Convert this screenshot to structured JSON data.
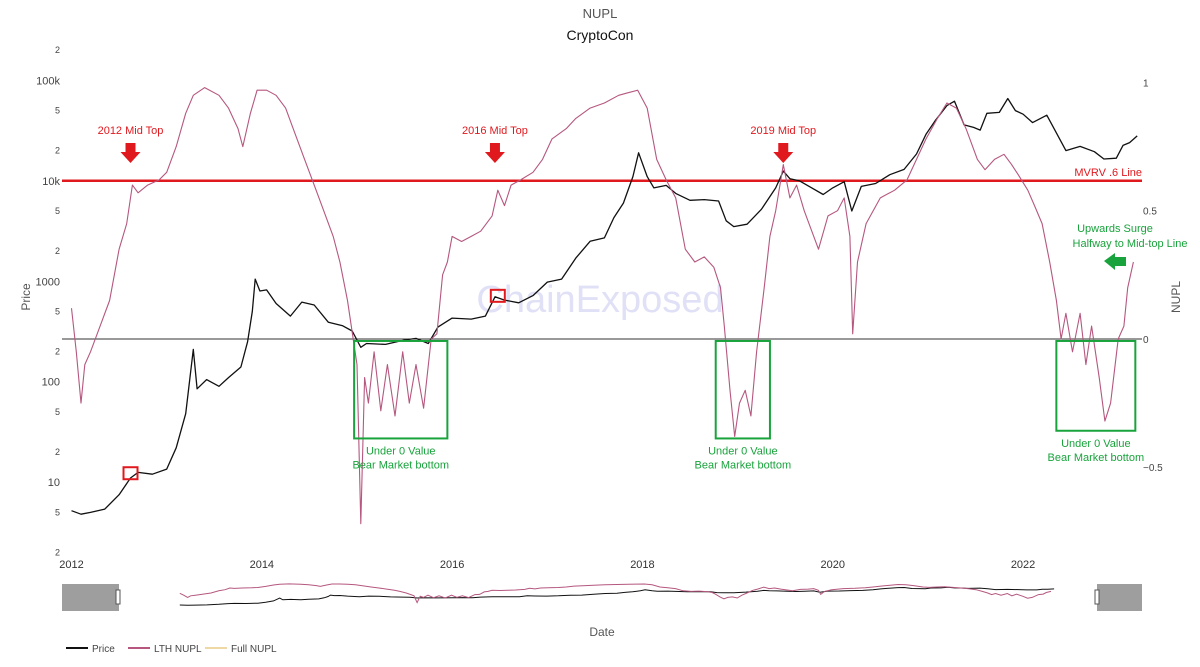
{
  "chart_data": {
    "type": "line",
    "title": "NUPL",
    "subtitle": "CryptoCon",
    "xlabel": "Date",
    "ylabel_left": "Price",
    "ylabel_right": "NUPL",
    "watermark": "ChainExposed",
    "x_ticks": [
      "2012",
      "2014",
      "2016",
      "2018",
      "2020",
      "2022"
    ],
    "x_range": [
      2011.9,
      2023.25
    ],
    "y_left": {
      "scale": "log",
      "range": [
        1.8,
        230000
      ],
      "major_ticks": [
        {
          "value": 10,
          "label": "10"
        },
        {
          "value": 100,
          "label": "100"
        },
        {
          "value": 1000,
          "label": "1000"
        },
        {
          "value": 10000,
          "label": "10k"
        },
        {
          "value": 100000,
          "label": "100k"
        }
      ],
      "minor_ticks": [
        {
          "value": 2,
          "label": "2"
        },
        {
          "value": 5,
          "label": "5"
        },
        {
          "value": 20,
          "label": "2"
        },
        {
          "value": 50,
          "label": "5"
        },
        {
          "value": 200,
          "label": "2"
        },
        {
          "value": 500,
          "label": "5"
        },
        {
          "value": 2000,
          "label": "2"
        },
        {
          "value": 5000,
          "label": "5"
        },
        {
          "value": 20000,
          "label": "2"
        },
        {
          "value": 50000,
          "label": "5"
        },
        {
          "value": 200000,
          "label": "2"
        }
      ]
    },
    "y_right": {
      "range": [
        -0.85,
        1.15
      ],
      "ticks": [
        {
          "value": 1,
          "label": "1"
        },
        {
          "value": 0.5,
          "label": "0.5"
        },
        {
          "value": 0,
          "label": "0"
        },
        {
          "value": -0.5,
          "label": "−0.5"
        }
      ]
    },
    "series": [
      {
        "name": "Price",
        "axis": "left",
        "color": "#111111",
        "points": [
          [
            2012.0,
            5.2
          ],
          [
            2012.1,
            4.8
          ],
          [
            2012.2,
            5.0
          ],
          [
            2012.35,
            5.4
          ],
          [
            2012.5,
            7.5
          ],
          [
            2012.62,
            11
          ],
          [
            2012.7,
            12.5
          ],
          [
            2012.85,
            12
          ],
          [
            2013.0,
            13.5
          ],
          [
            2013.1,
            22
          ],
          [
            2013.2,
            48
          ],
          [
            2013.28,
            210
          ],
          [
            2013.32,
            85
          ],
          [
            2013.42,
            105
          ],
          [
            2013.55,
            90
          ],
          [
            2013.65,
            110
          ],
          [
            2013.78,
            140
          ],
          [
            2013.85,
            250
          ],
          [
            2013.9,
            500
          ],
          [
            2013.93,
            1050
          ],
          [
            2013.98,
            800
          ],
          [
            2014.05,
            820
          ],
          [
            2014.15,
            600
          ],
          [
            2014.3,
            450
          ],
          [
            2014.42,
            620
          ],
          [
            2014.55,
            580
          ],
          [
            2014.7,
            390
          ],
          [
            2014.85,
            360
          ],
          [
            2014.95,
            320
          ],
          [
            2015.04,
            220
          ],
          [
            2015.1,
            240
          ],
          [
            2015.3,
            235
          ],
          [
            2015.5,
            260
          ],
          [
            2015.62,
            270
          ],
          [
            2015.75,
            240
          ],
          [
            2015.85,
            350
          ],
          [
            2016.0,
            430
          ],
          [
            2016.2,
            420
          ],
          [
            2016.35,
            450
          ],
          [
            2016.45,
            700
          ],
          [
            2016.55,
            650
          ],
          [
            2016.7,
            610
          ],
          [
            2016.85,
            720
          ],
          [
            2017.0,
            980
          ],
          [
            2017.15,
            1050
          ],
          [
            2017.3,
            1700
          ],
          [
            2017.45,
            2500
          ],
          [
            2017.6,
            2700
          ],
          [
            2017.7,
            4300
          ],
          [
            2017.8,
            6000
          ],
          [
            2017.9,
            11000
          ],
          [
            2017.96,
            19000
          ],
          [
            2018.05,
            11000
          ],
          [
            2018.12,
            8500
          ],
          [
            2018.25,
            9000
          ],
          [
            2018.35,
            7500
          ],
          [
            2018.5,
            6400
          ],
          [
            2018.65,
            6500
          ],
          [
            2018.8,
            6300
          ],
          [
            2018.88,
            4000
          ],
          [
            2018.96,
            3500
          ],
          [
            2019.1,
            3700
          ],
          [
            2019.25,
            5200
          ],
          [
            2019.4,
            8500
          ],
          [
            2019.48,
            12500
          ],
          [
            2019.55,
            10500
          ],
          [
            2019.65,
            10000
          ],
          [
            2019.78,
            8500
          ],
          [
            2019.9,
            7300
          ],
          [
            2020.0,
            8500
          ],
          [
            2020.12,
            9800
          ],
          [
            2020.2,
            5000
          ],
          [
            2020.3,
            8800
          ],
          [
            2020.45,
            9400
          ],
          [
            2020.6,
            11500
          ],
          [
            2020.75,
            13000
          ],
          [
            2020.88,
            18500
          ],
          [
            2020.98,
            29000
          ],
          [
            2021.08,
            40000
          ],
          [
            2021.2,
            56000
          ],
          [
            2021.28,
            62000
          ],
          [
            2021.38,
            36000
          ],
          [
            2021.48,
            34000
          ],
          [
            2021.55,
            32000
          ],
          [
            2021.62,
            47000
          ],
          [
            2021.75,
            48000
          ],
          [
            2021.84,
            66000
          ],
          [
            2021.92,
            50000
          ],
          [
            2022.0,
            46000
          ],
          [
            2022.1,
            38000
          ],
          [
            2022.25,
            45000
          ],
          [
            2022.35,
            30000
          ],
          [
            2022.45,
            20000
          ],
          [
            2022.6,
            22000
          ],
          [
            2022.75,
            19500
          ],
          [
            2022.85,
            16500
          ],
          [
            2022.98,
            16800
          ],
          [
            2023.05,
            22500
          ],
          [
            2023.12,
            24000
          ],
          [
            2023.2,
            28000
          ]
        ]
      },
      {
        "name": "LTH NUPL",
        "axis": "right",
        "color": "#b5577f",
        "points": [
          [
            2012.0,
            0.12
          ],
          [
            2012.05,
            -0.05
          ],
          [
            2012.1,
            -0.25
          ],
          [
            2012.14,
            -0.1
          ],
          [
            2012.2,
            -0.05
          ],
          [
            2012.3,
            0.05
          ],
          [
            2012.4,
            0.15
          ],
          [
            2012.5,
            0.35
          ],
          [
            2012.58,
            0.45
          ],
          [
            2012.64,
            0.6
          ],
          [
            2012.7,
            0.57
          ],
          [
            2012.8,
            0.6
          ],
          [
            2012.92,
            0.62
          ],
          [
            2013.0,
            0.65
          ],
          [
            2013.1,
            0.75
          ],
          [
            2013.2,
            0.88
          ],
          [
            2013.28,
            0.95
          ],
          [
            2013.4,
            0.98
          ],
          [
            2013.55,
            0.95
          ],
          [
            2013.65,
            0.9
          ],
          [
            2013.75,
            0.82
          ],
          [
            2013.8,
            0.75
          ],
          [
            2013.88,
            0.88
          ],
          [
            2013.95,
            0.97
          ],
          [
            2014.05,
            0.97
          ],
          [
            2014.15,
            0.95
          ],
          [
            2014.25,
            0.9
          ],
          [
            2014.35,
            0.8
          ],
          [
            2014.45,
            0.7
          ],
          [
            2014.55,
            0.6
          ],
          [
            2014.65,
            0.5
          ],
          [
            2014.75,
            0.4
          ],
          [
            2014.82,
            0.3
          ],
          [
            2014.9,
            0.15
          ],
          [
            2014.96,
            0.0
          ],
          [
            2015.0,
            -0.1
          ],
          [
            2015.04,
            -0.72
          ],
          [
            2015.08,
            -0.15
          ],
          [
            2015.12,
            -0.25
          ],
          [
            2015.18,
            -0.05
          ],
          [
            2015.25,
            -0.28
          ],
          [
            2015.32,
            -0.1
          ],
          [
            2015.4,
            -0.3
          ],
          [
            2015.48,
            -0.05
          ],
          [
            2015.55,
            -0.25
          ],
          [
            2015.62,
            -0.1
          ],
          [
            2015.7,
            -0.27
          ],
          [
            2015.78,
            0.0
          ],
          [
            2015.84,
            0.02
          ],
          [
            2015.9,
            0.25
          ],
          [
            2015.95,
            0.3
          ],
          [
            2016.0,
            0.4
          ],
          [
            2016.1,
            0.38
          ],
          [
            2016.2,
            0.4
          ],
          [
            2016.3,
            0.42
          ],
          [
            2016.42,
            0.48
          ],
          [
            2016.48,
            0.58
          ],
          [
            2016.55,
            0.52
          ],
          [
            2016.62,
            0.6
          ],
          [
            2016.72,
            0.62
          ],
          [
            2016.85,
            0.65
          ],
          [
            2016.95,
            0.7
          ],
          [
            2017.05,
            0.78
          ],
          [
            2017.2,
            0.82
          ],
          [
            2017.3,
            0.86
          ],
          [
            2017.45,
            0.9
          ],
          [
            2017.6,
            0.92
          ],
          [
            2017.75,
            0.95
          ],
          [
            2017.85,
            0.96
          ],
          [
            2017.95,
            0.97
          ],
          [
            2018.05,
            0.9
          ],
          [
            2018.15,
            0.7
          ],
          [
            2018.25,
            0.62
          ],
          [
            2018.35,
            0.55
          ],
          [
            2018.45,
            0.35
          ],
          [
            2018.55,
            0.3
          ],
          [
            2018.65,
            0.32
          ],
          [
            2018.75,
            0.28
          ],
          [
            2018.82,
            0.2
          ],
          [
            2018.86,
            0.05
          ],
          [
            2018.92,
            -0.2
          ],
          [
            2018.97,
            -0.38
          ],
          [
            2019.02,
            -0.25
          ],
          [
            2019.08,
            -0.2
          ],
          [
            2019.14,
            -0.3
          ],
          [
            2019.2,
            -0.05
          ],
          [
            2019.28,
            0.2
          ],
          [
            2019.34,
            0.4
          ],
          [
            2019.4,
            0.5
          ],
          [
            2019.48,
            0.68
          ],
          [
            2019.55,
            0.55
          ],
          [
            2019.62,
            0.6
          ],
          [
            2019.7,
            0.5
          ],
          [
            2019.78,
            0.42
          ],
          [
            2019.85,
            0.35
          ],
          [
            2019.95,
            0.48
          ],
          [
            2020.05,
            0.5
          ],
          [
            2020.12,
            0.55
          ],
          [
            2020.18,
            0.4
          ],
          [
            2020.21,
            0.02
          ],
          [
            2020.26,
            0.3
          ],
          [
            2020.35,
            0.45
          ],
          [
            2020.5,
            0.55
          ],
          [
            2020.65,
            0.58
          ],
          [
            2020.78,
            0.62
          ],
          [
            2020.88,
            0.7
          ],
          [
            2020.98,
            0.78
          ],
          [
            2021.1,
            0.86
          ],
          [
            2021.2,
            0.92
          ],
          [
            2021.3,
            0.9
          ],
          [
            2021.4,
            0.82
          ],
          [
            2021.52,
            0.7
          ],
          [
            2021.6,
            0.66
          ],
          [
            2021.7,
            0.7
          ],
          [
            2021.8,
            0.72
          ],
          [
            2021.88,
            0.68
          ],
          [
            2021.95,
            0.64
          ],
          [
            2022.05,
            0.58
          ],
          [
            2022.12,
            0.52
          ],
          [
            2022.2,
            0.45
          ],
          [
            2022.28,
            0.3
          ],
          [
            2022.35,
            0.15
          ],
          [
            2022.4,
            0.0
          ],
          [
            2022.45,
            0.1
          ],
          [
            2022.52,
            -0.05
          ],
          [
            2022.6,
            0.1
          ],
          [
            2022.66,
            -0.1
          ],
          [
            2022.72,
            0.05
          ],
          [
            2022.8,
            -0.15
          ],
          [
            2022.86,
            -0.32
          ],
          [
            2022.92,
            -0.25
          ],
          [
            2023.0,
            0.0
          ],
          [
            2023.06,
            0.05
          ],
          [
            2023.1,
            0.2
          ],
          [
            2023.16,
            0.3
          ]
        ]
      },
      {
        "name": "Full NUPL",
        "axis": "right",
        "color": "#f0d8a6",
        "points": []
      }
    ],
    "reference_lines": [
      {
        "axis": "left",
        "value": 10000,
        "color": "#e0191e",
        "label": "MVRV .6 Line"
      },
      {
        "axis": "right",
        "value": 0,
        "color": "#333333",
        "label": ""
      }
    ],
    "annotations": {
      "red_labels": [
        {
          "text": "2012 Mid Top",
          "x": 2012.62
        },
        {
          "text": "2016 Mid Top",
          "x": 2016.45
        },
        {
          "text": "2019 Mid Top",
          "x": 2019.48
        }
      ],
      "green_boxes": [
        {
          "x0": 2014.97,
          "x1": 2015.95,
          "y0": 0.0,
          "y1": -0.38,
          "line1": "Under 0 Value",
          "line2": "Bear Market bottom"
        },
        {
          "x0": 2018.77,
          "x1": 2019.34,
          "y0": 0.0,
          "y1": -0.38,
          "line1": "Under 0 Value",
          "line2": "Bear Market bottom"
        },
        {
          "x0": 2022.35,
          "x1": 2023.18,
          "y0": 0.0,
          "y1": -0.35,
          "line1": "Under 0 Value",
          "line2": "Bear Market bottom"
        }
      ],
      "red_boxes": [
        {
          "x": 2012.62,
          "y_price": 12
        },
        {
          "x": 2016.48,
          "y_price": 700
        }
      ],
      "upward_label": [
        "Upwards Surge",
        "Halfway to Mid-top Line"
      ],
      "upward_arrow_color": "#19a33c"
    },
    "legend": {
      "placement": "bottom-left",
      "items": [
        {
          "label": "Price",
          "color": "#111111"
        },
        {
          "label": "LTH NUPL",
          "color": "#b5577f"
        },
        {
          "label": "Full NUPL",
          "color": "#f0d8a6"
        }
      ]
    },
    "range_slider": true,
    "grid": false
  }
}
